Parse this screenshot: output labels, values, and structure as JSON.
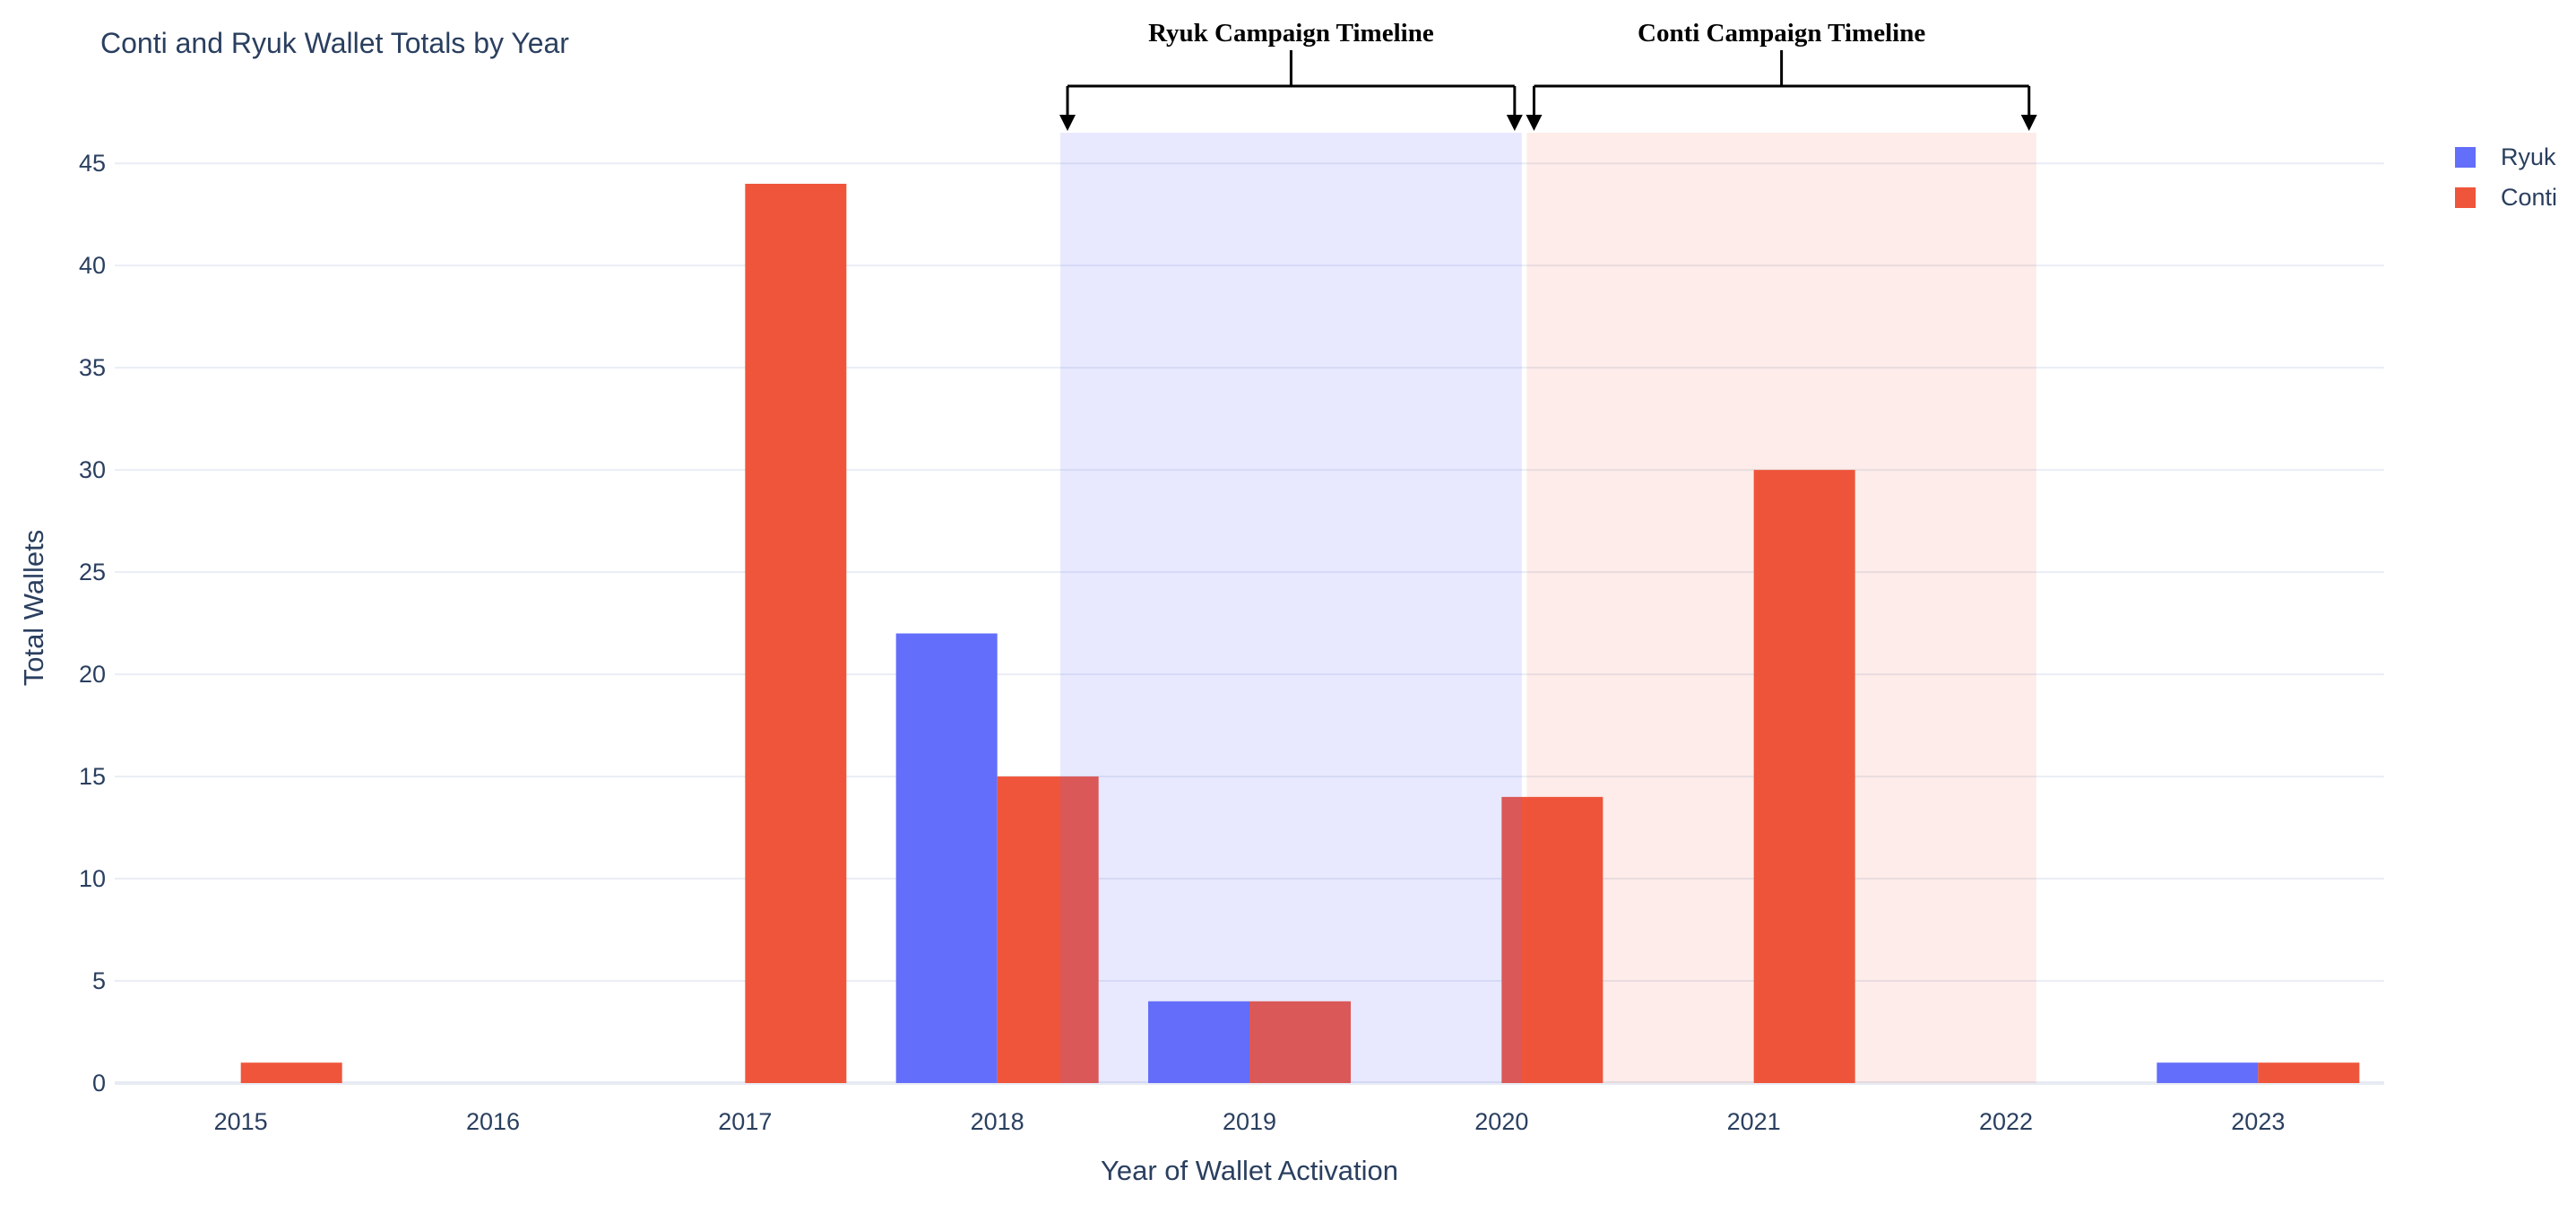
{
  "chart_data": {
    "type": "bar",
    "title": "Conti and Ryuk Wallet Totals by Year",
    "xlabel": "Year of Wallet Activation",
    "ylabel": "Total Wallets",
    "categories": [
      "2015",
      "2016",
      "2017",
      "2018",
      "2019",
      "2020",
      "2021",
      "2022",
      "2023"
    ],
    "series": [
      {
        "name": "Ryuk",
        "color": "#636EFA",
        "values": [
          0,
          0,
          0,
          22,
          4,
          0,
          0,
          0,
          1
        ]
      },
      {
        "name": "Conti",
        "color": "#EF553B",
        "values": [
          1,
          0,
          44,
          15,
          4,
          14,
          30,
          0,
          1
        ]
      }
    ],
    "ylim": [
      0,
      46.5
    ],
    "yticks": [
      0,
      5,
      10,
      15,
      20,
      25,
      30,
      35,
      40,
      45
    ],
    "grid": true,
    "legend_position": "top-right",
    "regions": [
      {
        "label": "Ryuk Campaign Timeline",
        "x0": 2018.25,
        "x1": 2020.08,
        "fill": "rgba(99,110,250,0.15)"
      },
      {
        "label": "Conti Campaign Timeline",
        "x0": 2020.1,
        "x1": 2022.12,
        "fill": "rgba(239,85,59,0.11)"
      }
    ],
    "colors": {
      "text": "#2a3f5f",
      "grid": "#e9edf5",
      "zero_line": "#e7ebf2",
      "annotation_line": "#000000",
      "background": "#ffffff"
    }
  }
}
